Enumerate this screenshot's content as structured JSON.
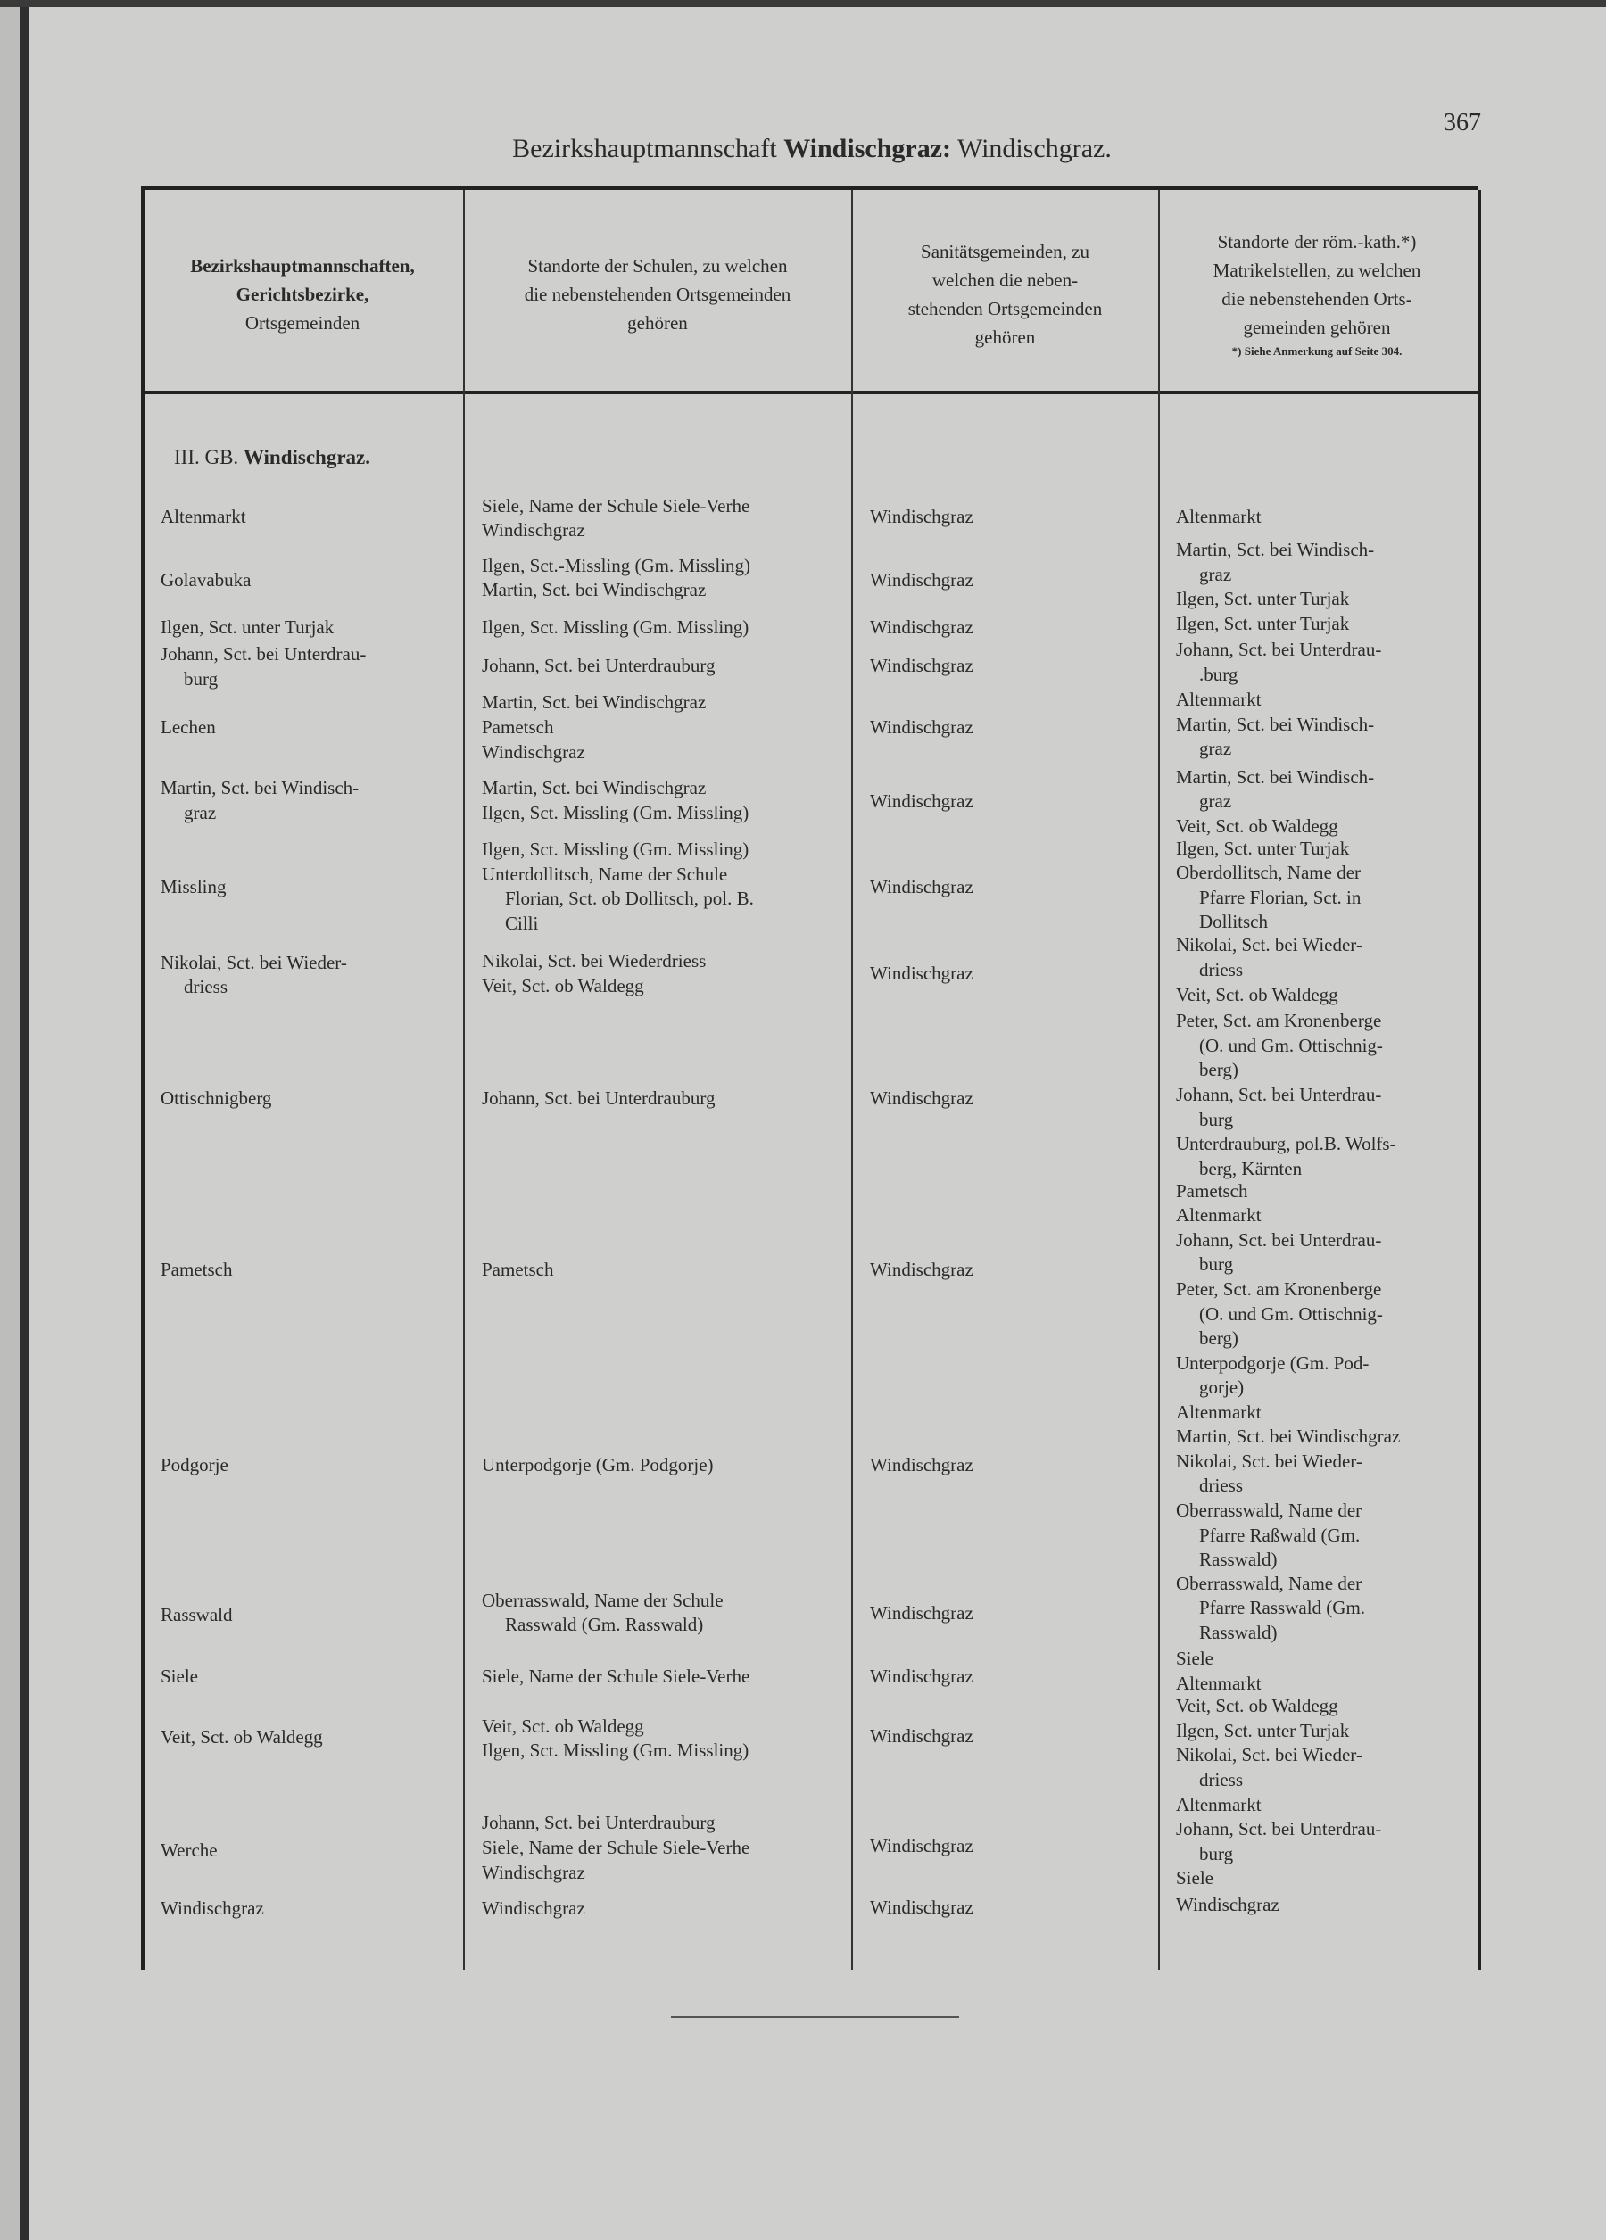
{
  "page_number": "367",
  "title": {
    "prefix": "Bezirkshauptmannschaft",
    "bold": "Windischgraz:",
    "suffix": "Windischgraz."
  },
  "headers": {
    "col1": [
      "Bezirkshauptmannschaften,",
      "Gerichtsbezirke,",
      "Ortsgemeinden"
    ],
    "col2": [
      "Standorte der Schulen, zu welchen",
      "die nebenstehenden Ortsgemeinden",
      "gehören"
    ],
    "col3": [
      "Sanitätsgemeinden, zu",
      "welchen die neben-",
      "stehenden Ortsgemeinden",
      "gehören"
    ],
    "col4": [
      "Standorte der röm.-kath.*)",
      "Matrikelstellen, zu welchen",
      "die nebenstehenden Orts-",
      "gemeinden gehören"
    ],
    "col4_note": "*) Siehe Anmerkung auf Seite 304."
  },
  "section": {
    "prefix": "III. GB.",
    "bold": "Windischgraz."
  },
  "rows": [
    {
      "name": [
        "Altenmarkt"
      ],
      "schools": [
        "Siele, Name der Schule Siele-Verhe",
        "Windischgraz"
      ],
      "sanitary": "Windischgraz",
      "parishes": [
        "Altenmarkt"
      ]
    },
    {
      "name": [
        "Golavabuka"
      ],
      "schools": [
        "Ilgen, Sct.-Missling (Gm. Missling)",
        "Martin, Sct. bei Windischgraz"
      ],
      "sanitary": "Windischgraz",
      "parishes": [
        "Martin, Sct. bei Windisch-",
        "graz",
        "Ilgen, Sct. unter Turjak"
      ]
    },
    {
      "name": [
        "Ilgen, Sct. unter Turjak"
      ],
      "schools": [
        "Ilgen, Sct. Missling (Gm. Missling)"
      ],
      "sanitary": "Windischgraz",
      "parishes": [
        "Ilgen, Sct. unter Turjak"
      ]
    },
    {
      "name": [
        "Johann, Sct. bei Unterdrau-",
        "burg"
      ],
      "schools": [
        "Johann, Sct. bei Unterdrauburg"
      ],
      "sanitary": "Windischgraz",
      "parishes": [
        "Johann, Sct. bei Unterdrau-",
        ".burg"
      ]
    },
    {
      "name": [
        "Lechen"
      ],
      "schools": [
        "Martin, Sct. bei Windischgraz",
        "Pametsch",
        "Windischgraz"
      ],
      "sanitary": "Windischgraz",
      "parishes": [
        "Altenmarkt",
        "Martin, Sct. bei Windisch-",
        "graz"
      ]
    },
    {
      "name": [
        "Martin, Sct. bei Windisch-",
        "graz"
      ],
      "schools": [
        "Martin, Sct. bei Windischgraz",
        "Ilgen, Sct. Missling (Gm. Missling)"
      ],
      "sanitary": "Windischgraz",
      "parishes": [
        "Martin, Sct. bei Windisch-",
        "graz",
        "Veit, Sct. ob Waldegg"
      ]
    },
    {
      "name": [
        "Missling"
      ],
      "schools": [
        "Ilgen, Sct. Missling (Gm. Missling)",
        "Unterdollitsch, Name der Schule",
        "Florian, Sct. ob Dollitsch, pol. B.",
        "Cilli"
      ],
      "sanitary": "Windischgraz",
      "parishes": [
        "Ilgen, Sct. unter Turjak",
        "Oberdollitsch, Name der",
        "Pfarre Florian, Sct. in",
        "Dollitsch"
      ]
    },
    {
      "name": [
        "Nikolai, Sct. bei Wieder-",
        "driess"
      ],
      "schools": [
        "Nikolai, Sct. bei Wiederdriess",
        "Veit, Sct. ob Waldegg"
      ],
      "sanitary": "Windischgraz",
      "parishes": [
        "Nikolai, Sct. bei Wieder-",
        "driess",
        "Veit, Sct. ob Waldegg"
      ]
    },
    {
      "name": [
        "Ottischnigberg"
      ],
      "schools": [
        "Johann, Sct. bei Unterdrauburg"
      ],
      "sanitary": "Windischgraz",
      "parishes": [
        "Peter, Sct. am Kronenberge",
        "(O. und Gm. Ottischnig-",
        "berg)",
        "Johann, Sct. bei Unterdrau-",
        "burg",
        "Unterdrauburg, pol.B. Wolfs-",
        "berg, Kärnten"
      ]
    },
    {
      "name": [
        "Pametsch"
      ],
      "schools": [
        "Pametsch"
      ],
      "sanitary": "Windischgraz",
      "parishes": [
        "Pametsch",
        "Altenmarkt",
        "Johann, Sct. bei Unterdrau-",
        "burg",
        "Peter, Sct. am Kronenberge",
        "(O. und Gm. Ottischnig-",
        "berg)",
        "Unterpodgorje (Gm. Pod-",
        "gorje)"
      ]
    },
    {
      "name": [
        "Podgorje"
      ],
      "schools": [
        "Unterpodgorje (Gm. Podgorje)"
      ],
      "sanitary": "Windischgraz",
      "parishes": [
        "Altenmarkt",
        "Martin, Sct. bei Windischgraz",
        "Nikolai, Sct. bei Wieder-",
        "driess",
        "Oberrasswald, Name der",
        "Pfarre Raßwald (Gm.",
        "Rasswald)"
      ]
    },
    {
      "name": [
        "Rasswald"
      ],
      "schools": [
        "Oberrasswald, Name der Schule",
        "Rasswald (Gm. Rasswald)"
      ],
      "sanitary": "Windischgraz",
      "parishes": [
        "Oberrasswald, Name der",
        "Pfarre Rasswald (Gm.",
        "Rasswald)"
      ]
    },
    {
      "name": [
        "Siele"
      ],
      "schools": [
        "Siele, Name der Schule Siele-Verhe"
      ],
      "sanitary": "Windischgraz",
      "parishes": [
        "Siele",
        "Altenmarkt"
      ]
    },
    {
      "name": [
        "Veit, Sct. ob Waldegg"
      ],
      "schools": [
        "Veit, Sct. ob Waldegg",
        "Ilgen, Sct. Missling (Gm. Missling)"
      ],
      "sanitary": "Windischgraz",
      "parishes": [
        "Veit, Sct. ob Waldegg",
        "Ilgen, Sct. unter Turjak",
        "Nikolai, Sct. bei Wieder-",
        "driess"
      ]
    },
    {
      "name": [
        "Werche"
      ],
      "schools": [
        "Johann, Sct. bei Unterdrauburg",
        "Siele, Name der Schule Siele-Verhe",
        "Windischgraz"
      ],
      "sanitary": "Windischgraz",
      "parishes": [
        "Altenmarkt",
        "Johann, Sct. bei Unterdrau-",
        "burg",
        "Siele"
      ]
    },
    {
      "name": [
        "Windischgraz"
      ],
      "schools": [
        "Windischgraz"
      ],
      "sanitary": "Windischgraz",
      "parishes": [
        "Windischgraz"
      ]
    }
  ]
}
